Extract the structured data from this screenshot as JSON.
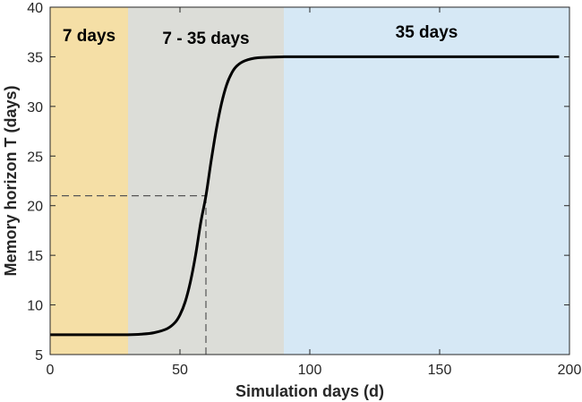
{
  "chart_data": {
    "type": "line",
    "title": "",
    "xlabel": "Simulation days (d)",
    "ylabel": "Memory horizon T (days)",
    "xlim": [
      0,
      200
    ],
    "ylim": [
      5,
      40
    ],
    "xticks": [
      0,
      50,
      100,
      150,
      200
    ],
    "yticks": [
      5,
      10,
      15,
      20,
      25,
      30,
      35,
      40
    ],
    "grid": false,
    "regions": [
      {
        "label": "7 days",
        "x_start": 0,
        "x_end": 30,
        "color": "#f5dfa6"
      },
      {
        "label": "7 - 35 days",
        "x_start": 30,
        "x_end": 90,
        "color": "#dcddd8"
      },
      {
        "label": "35 days",
        "x_start": 90,
        "x_end": 200,
        "color": "#d6e8f5"
      }
    ],
    "series": [
      {
        "color": "#000000",
        "x": [
          0,
          10,
          20,
          30,
          35,
          40,
          45,
          48,
          50,
          52,
          54,
          56,
          58,
          60,
          62,
          64,
          66,
          68,
          70,
          72,
          75,
          80,
          90,
          100,
          120,
          150,
          180,
          196
        ],
        "y": [
          7,
          7,
          7,
          7,
          7.05,
          7.2,
          7.6,
          8.2,
          9,
          10.3,
          12.3,
          15,
          18.3,
          21,
          24.5,
          27.7,
          30.3,
          32.2,
          33.4,
          34.1,
          34.6,
          34.9,
          35,
          35,
          35,
          35,
          35,
          35
        ]
      }
    ],
    "reference_lines": [
      {
        "style": "dashed",
        "color": "#555555",
        "from": [
          0,
          21
        ],
        "to": [
          60,
          21
        ]
      },
      {
        "style": "dashed",
        "color": "#555555",
        "from": [
          60,
          5
        ],
        "to": [
          60,
          21
        ]
      }
    ]
  }
}
